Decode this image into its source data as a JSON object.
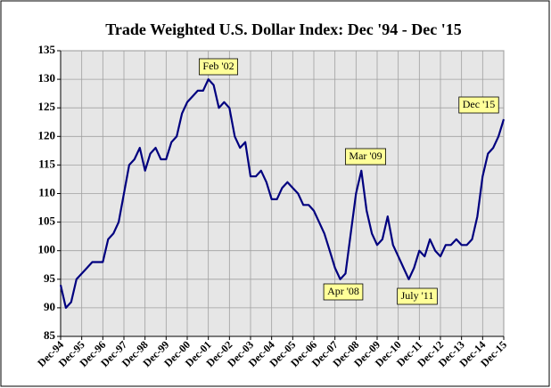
{
  "chart_data": {
    "type": "line",
    "title": "Trade Weighted U.S. Dollar Index: Dec '94 - Dec '15",
    "categories": [
      "Dec-94",
      null,
      null,
      null,
      "Dec-95",
      null,
      null,
      null,
      "Dec-96",
      null,
      null,
      null,
      "Dec-97",
      null,
      null,
      null,
      "Dec-98",
      null,
      null,
      null,
      "Dec-99",
      null,
      null,
      null,
      "Dec-00",
      null,
      null,
      null,
      "Dec-01",
      null,
      null,
      null,
      "Dec-02",
      null,
      null,
      null,
      "Dec-03",
      null,
      null,
      null,
      "Dec-04",
      null,
      null,
      null,
      "Dec-05",
      null,
      null,
      null,
      "Dec-06",
      null,
      null,
      null,
      "Dec-07",
      null,
      null,
      null,
      "Dec-08",
      null,
      null,
      null,
      "Dec-09",
      null,
      null,
      null,
      "Dec-10",
      null,
      null,
      null,
      "Dec-11",
      null,
      null,
      null,
      "Dec-12",
      null,
      null,
      null,
      "Dec-13",
      null,
      null,
      null,
      "Dec-14",
      null,
      null,
      null,
      "Dec-15"
    ],
    "series": [
      {
        "name": "Trade Weighted U.S. Dollar Index",
        "color": "#00007f",
        "values": [
          94,
          90,
          91,
          95,
          96,
          97,
          98,
          98,
          98,
          102,
          103,
          105,
          110,
          115,
          116,
          118,
          114,
          117,
          118,
          116,
          116,
          119,
          120,
          124,
          126,
          127,
          128,
          128,
          130,
          129,
          125,
          126,
          125,
          120,
          118,
          119,
          113,
          113,
          114,
          112,
          109,
          109,
          111,
          112,
          111,
          110,
          108,
          108,
          107,
          105,
          103,
          100,
          97,
          95,
          96,
          103,
          110,
          114,
          107,
          103,
          101,
          102,
          106,
          101,
          99,
          97,
          95,
          97,
          100,
          99,
          102,
          100,
          99,
          101,
          101,
          102,
          101,
          101,
          102,
          106,
          113,
          117,
          118,
          120,
          123
        ]
      }
    ],
    "annotations": [
      "Feb '02",
      "Apr '08",
      "Mar '09",
      "July '11",
      "Dec '15"
    ],
    "ylim": [
      85,
      135
    ],
    "yticks": [
      85,
      90,
      95,
      100,
      105,
      110,
      115,
      120,
      125,
      130,
      135
    ],
    "grid": true
  }
}
